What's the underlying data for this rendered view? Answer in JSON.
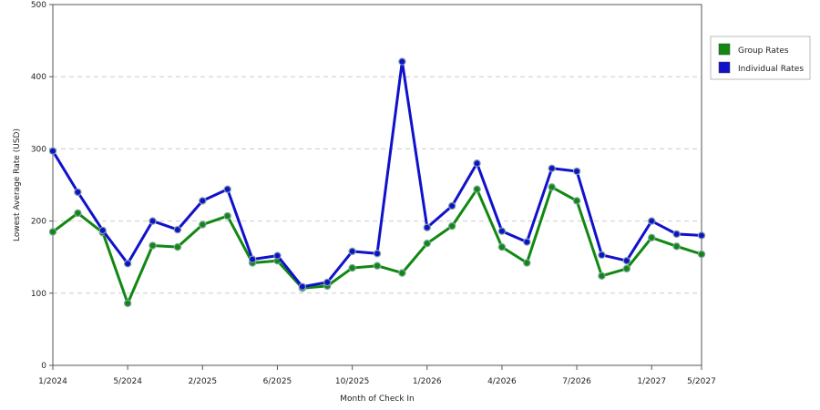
{
  "chart_data": {
    "type": "line",
    "title": "",
    "xlabel": "Month of Check In",
    "ylabel": "Lowest Average Rate (USD)",
    "ylim": [
      0,
      500
    ],
    "yticks": [
      0,
      100,
      200,
      300,
      400,
      500
    ],
    "grid": true,
    "legend_position": "right",
    "x_tick_labels": [
      {
        "index": 0,
        "label": "1/2024"
      },
      {
        "index": 3,
        "label": "5/2024"
      },
      {
        "index": 6,
        "label": "2/2025"
      },
      {
        "index": 9,
        "label": "6/2025"
      },
      {
        "index": 12,
        "label": "10/2025"
      },
      {
        "index": 15,
        "label": "1/2026"
      },
      {
        "index": 18,
        "label": "4/2026"
      },
      {
        "index": 21,
        "label": "7/2026"
      },
      {
        "index": 24,
        "label": "1/2027"
      },
      {
        "index": 26,
        "label": "5/2027"
      }
    ],
    "point_count": 27,
    "series": [
      {
        "name": "Group Rates",
        "color": "#118811",
        "values": [
          185,
          211,
          184,
          86,
          166,
          164,
          195,
          207,
          142,
          145,
          107,
          110,
          135,
          138,
          128,
          169,
          193,
          244,
          164,
          142,
          247,
          228,
          124,
          134,
          177,
          165,
          154
        ]
      },
      {
        "name": "Individual Rates",
        "color": "#1111cc",
        "values": [
          297,
          240,
          187,
          141,
          200,
          188,
          228,
          244,
          147,
          152,
          109,
          115,
          158,
          155,
          421,
          191,
          221,
          280,
          186,
          171,
          273,
          269,
          153,
          145,
          200,
          182,
          180
        ]
      }
    ]
  }
}
